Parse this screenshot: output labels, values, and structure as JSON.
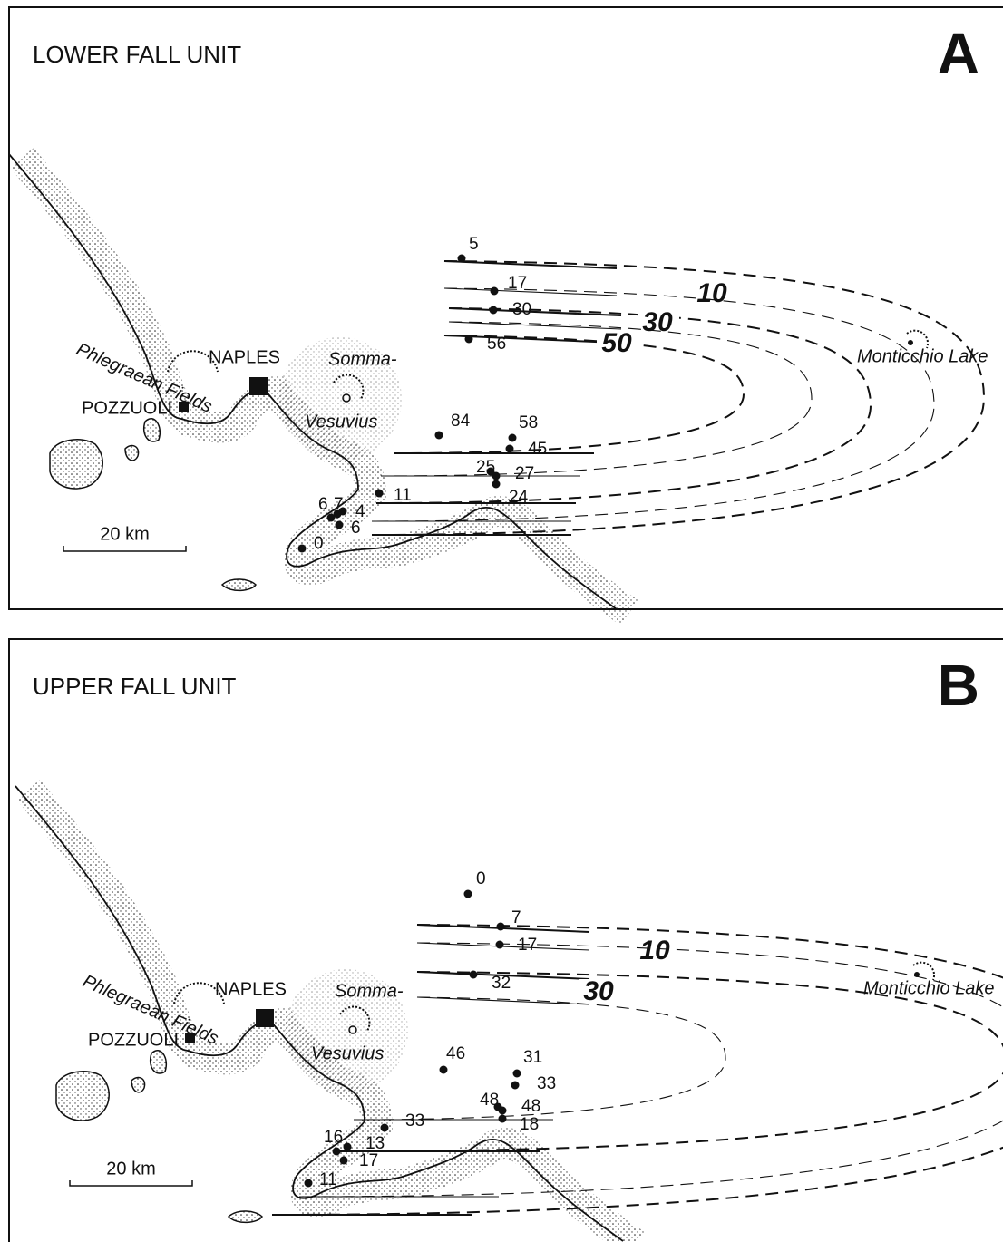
{
  "panels": [
    {
      "letter": "A",
      "title": "LOWER FALL UNIT",
      "places": {
        "naples": "NAPLES",
        "pozzuoli": "POZZUOLI",
        "phlegraean": "Phlegraean Fields",
        "somma": "Somma-",
        "vesuvius": "Vesuvius",
        "monticchio": "Monticchio Lake"
      },
      "isopachs": [
        10,
        30,
        50
      ],
      "sites": [
        5,
        17,
        30,
        56,
        84,
        58,
        45,
        25,
        27,
        24,
        11,
        6,
        7,
        4,
        6,
        0
      ],
      "scale": "20 km"
    },
    {
      "letter": "B",
      "title": "UPPER FALL UNIT",
      "places": {
        "naples": "NAPLES",
        "pozzuoli": "POZZUOLI",
        "phlegraean": "Phlegraean Fields",
        "somma": "Somma-",
        "vesuvius": "Vesuvius",
        "monticchio": "Monticchio Lake"
      },
      "isopachs": [
        10,
        30
      ],
      "sites": [
        0,
        7,
        17,
        32,
        46,
        31,
        33,
        48,
        48,
        18,
        33,
        16,
        13,
        17,
        11
      ],
      "scale": "20 km"
    }
  ]
}
